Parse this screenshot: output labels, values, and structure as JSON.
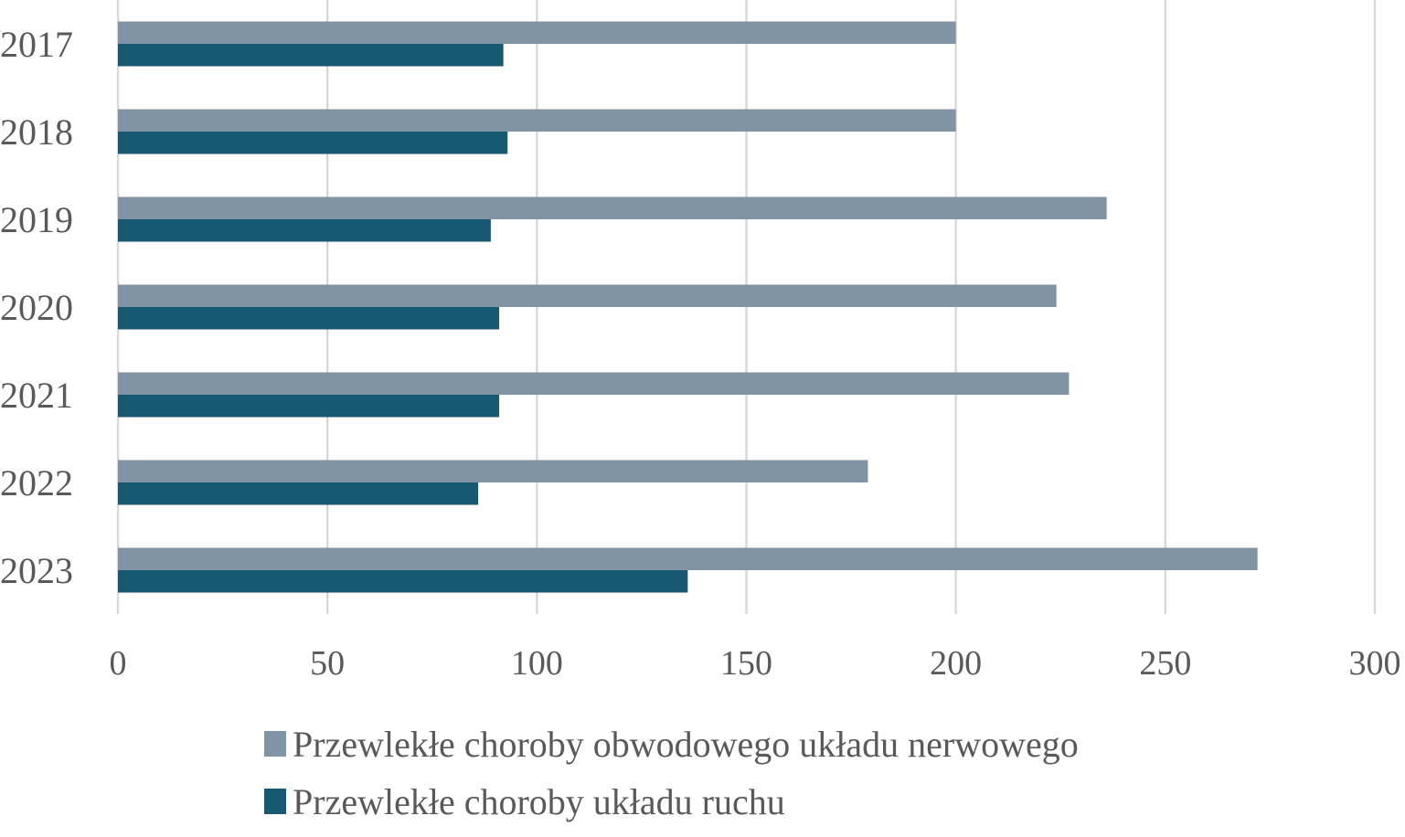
{
  "chart_data": {
    "type": "bar",
    "orientation": "horizontal",
    "title": "",
    "xlabel": "",
    "ylabel": "",
    "categories": [
      "2017",
      "2018",
      "2019",
      "2020",
      "2021",
      "2022",
      "2023"
    ],
    "series": [
      {
        "name": "Przewlekłe choroby obwodowego układu nerwowego",
        "color": "#7f95a5",
        "values": [
          200,
          200,
          236,
          224,
          227,
          179,
          272
        ]
      },
      {
        "name": "Przewlekłe choroby układu ruchu",
        "color": "#175873",
        "values": [
          92,
          93,
          89,
          91,
          91,
          86,
          136
        ]
      }
    ],
    "xlim": [
      0,
      300
    ],
    "xticks": [
      "0",
      "50",
      "100",
      "150",
      "200",
      "250",
      "300"
    ],
    "grid": true,
    "legend_position": "bottom"
  }
}
